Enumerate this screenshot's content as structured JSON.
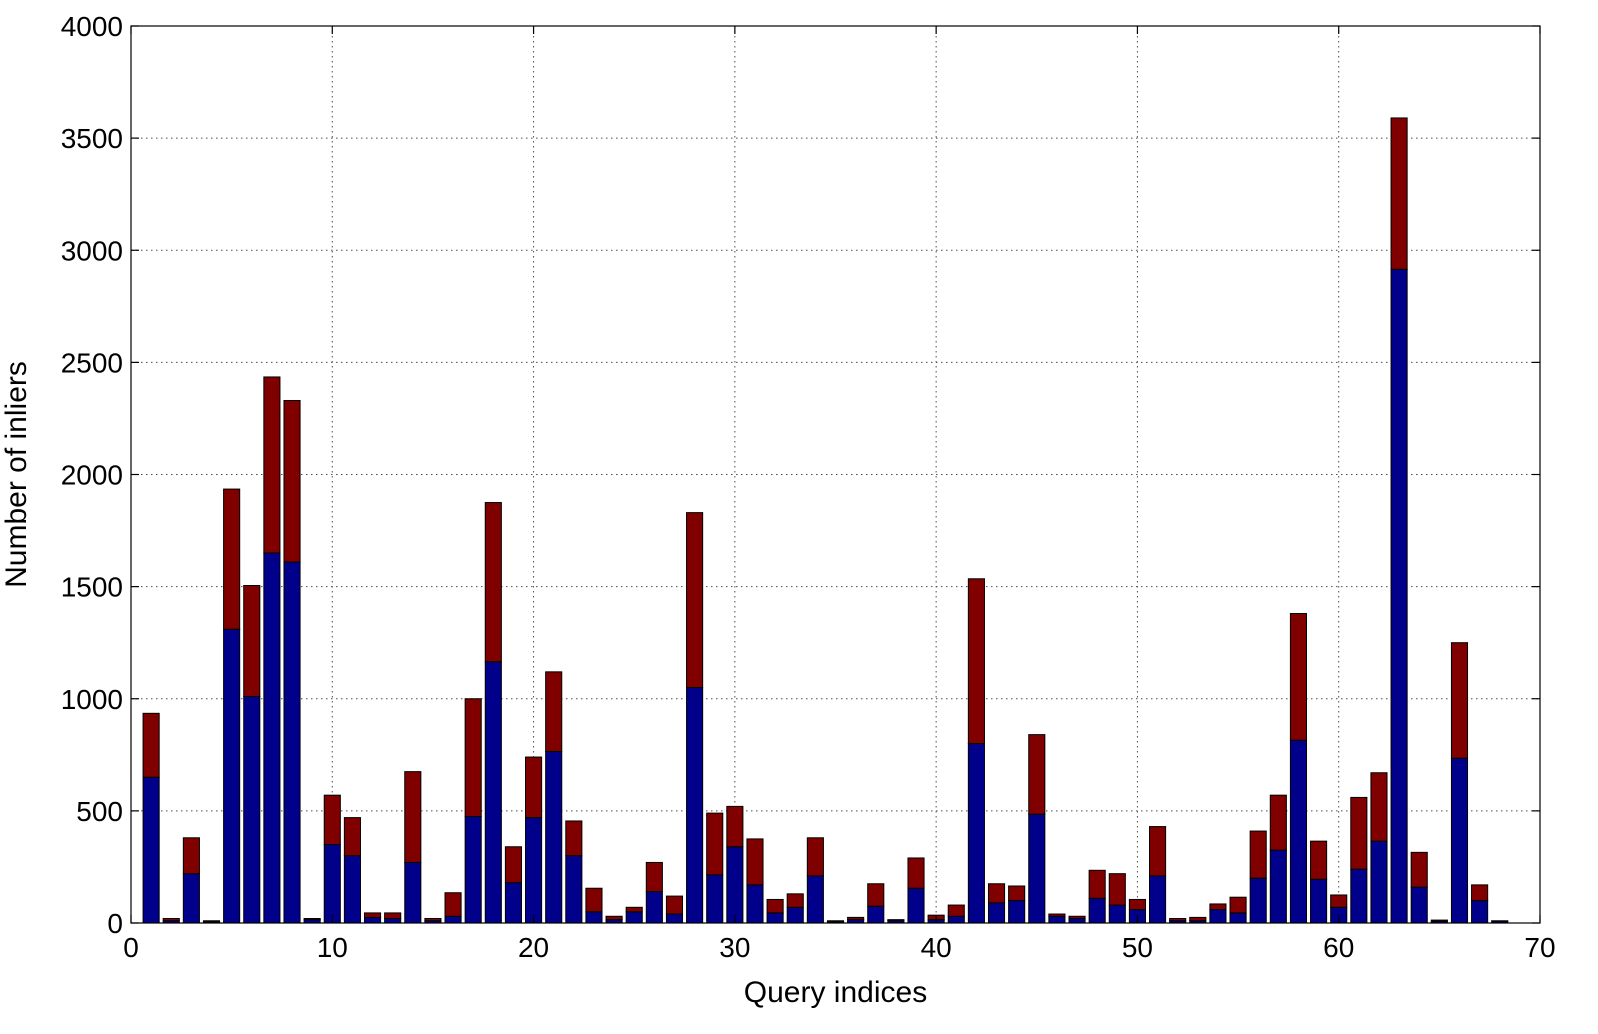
{
  "chart_data": {
    "type": "bar",
    "stacked": true,
    "title": "",
    "xlabel": "Query indices",
    "ylabel": "Number of inliers",
    "xlim": [
      0,
      70
    ],
    "ylim": [
      0,
      4000
    ],
    "xticks": [
      0,
      10,
      20,
      30,
      40,
      50,
      60,
      70
    ],
    "yticks": [
      0,
      500,
      1000,
      1500,
      2000,
      2500,
      3000,
      3500,
      4000
    ],
    "grid": true,
    "x": [
      1,
      2,
      3,
      4,
      5,
      6,
      7,
      8,
      9,
      10,
      11,
      12,
      13,
      14,
      15,
      16,
      17,
      18,
      19,
      20,
      21,
      22,
      23,
      24,
      25,
      26,
      27,
      28,
      29,
      30,
      31,
      32,
      33,
      34,
      35,
      36,
      37,
      38,
      39,
      40,
      41,
      42,
      43,
      44,
      45,
      46,
      47,
      48,
      49,
      50,
      51,
      52,
      53,
      54,
      55,
      56,
      57,
      58,
      59,
      60,
      61,
      62,
      63,
      64,
      65,
      66,
      67,
      68
    ],
    "series": [
      {
        "color": "#00008b",
        "values": [
          650,
          10,
          220,
          5,
          1310,
          1010,
          1650,
          1610,
          15,
          350,
          300,
          25,
          20,
          270,
          10,
          30,
          475,
          1165,
          180,
          470,
          765,
          300,
          50,
          15,
          50,
          140,
          40,
          1050,
          215,
          340,
          170,
          45,
          70,
          210,
          5,
          15,
          75,
          10,
          155,
          15,
          30,
          800,
          90,
          100,
          485,
          30,
          20,
          110,
          80,
          60,
          210,
          10,
          10,
          60,
          45,
          200,
          325,
          815,
          195,
          70,
          240,
          365,
          2915,
          160,
          8,
          735,
          100,
          8
        ]
      },
      {
        "color": "#800000",
        "values": [
          285,
          10,
          160,
          5,
          625,
          495,
          785,
          720,
          5,
          220,
          170,
          20,
          25,
          405,
          10,
          105,
          525,
          710,
          160,
          270,
          355,
          155,
          105,
          15,
          20,
          130,
          80,
          780,
          275,
          180,
          205,
          60,
          60,
          170,
          5,
          10,
          100,
          5,
          135,
          20,
          50,
          735,
          85,
          65,
          355,
          10,
          10,
          125,
          140,
          45,
          220,
          10,
          15,
          25,
          70,
          210,
          245,
          565,
          170,
          55,
          320,
          305,
          675,
          155,
          5,
          515,
          70,
          2
        ]
      }
    ]
  }
}
